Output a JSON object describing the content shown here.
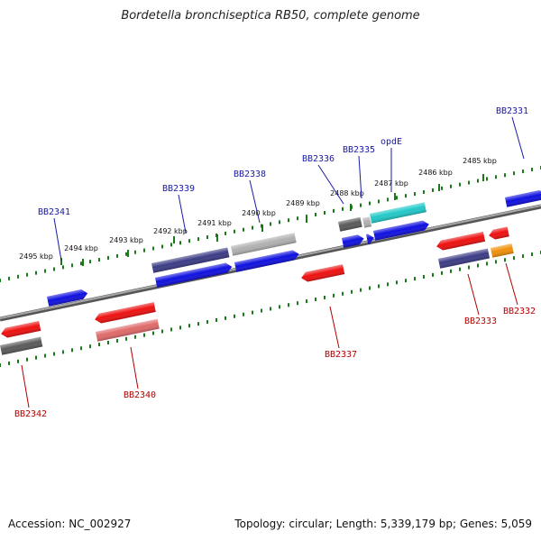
{
  "title": "Bordetella bronchiseptica RB50, complete genome",
  "footer": {
    "accession": "Accession: NC_002927",
    "stats": "Topology: circular; Length: 5,339,179 bp; Genes: 5,059"
  },
  "ticks": [
    "2495 kbp",
    "2494 kbp",
    "2493 kbp",
    "2492 kbp",
    "2491 kbp",
    "2490 kbp",
    "2489 kbp",
    "2488 kbp",
    "2487 kbp",
    "2486 kbp",
    "2485 kbp"
  ],
  "gene_labels_top": [
    "BB2341",
    "BB2339",
    "BB2338",
    "BB2336",
    "BB2335",
    "opdE",
    "BB2331"
  ],
  "gene_labels_bottom": [
    "BB2342",
    "BB2340",
    "BB2337",
    "BB2333",
    "BB2332"
  ],
  "colors": {
    "label_top": "#1a1aa6",
    "label_bottom": "#b30000",
    "tick": "#1a7a1a",
    "axis": "#7a7a7a",
    "gene_blue": "#1010e0",
    "gene_red": "#ee1010",
    "gene_navy": "#3c3c86",
    "gene_gray": "#5a5a5a",
    "gene_lightgray": "#b0b0b0",
    "gene_pink": "#e06a6a",
    "gene_cyan": "#22c8c8",
    "gene_orange": "#f0900a"
  }
}
